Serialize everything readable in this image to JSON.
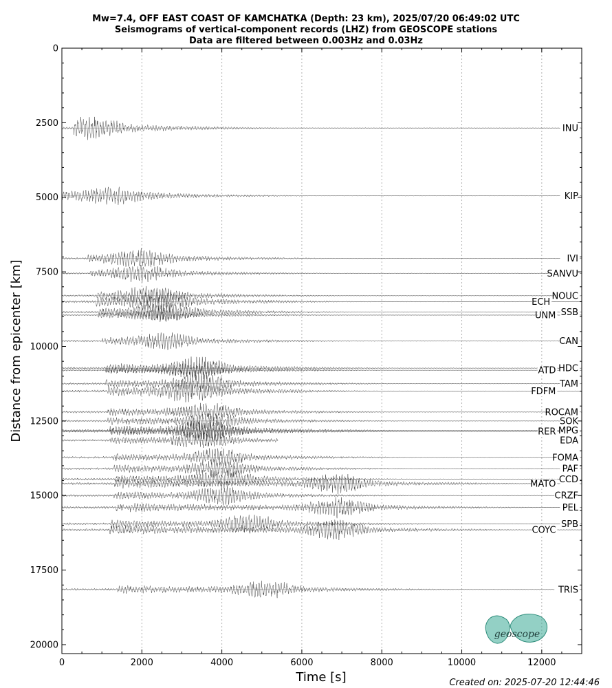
{
  "chart_data": {
    "type": "seismogram-record-section",
    "title_lines": [
      "Mw=7.4, OFF EAST COAST OF KAMCHATKA (Depth: 23 km), 2025/07/20 06:49:02 UTC",
      "Seismograms of vertical-component records (LHZ) from GEOSCOPE stations",
      "Data are filtered between 0.003Hz and 0.03Hz"
    ],
    "xlabel": "Time [s]",
    "ylabel": "Distance from epicenter [km]",
    "xlim": [
      0,
      13000
    ],
    "ylim": [
      20300,
      0
    ],
    "y_inverted": true,
    "x_ticks": [
      0,
      2000,
      4000,
      6000,
      8000,
      10000,
      12000
    ],
    "y_ticks": [
      0,
      2500,
      5000,
      7500,
      10000,
      12500,
      15000,
      17500,
      20000
    ],
    "grid": "vertical dotted lines at major x ticks",
    "stations": [
      {
        "name": "INU",
        "distance": 2680,
        "onset": 300,
        "peak": 800,
        "amp": 0.95
      },
      {
        "name": "KIP",
        "distance": 4950,
        "onset": 0,
        "peak": 1300,
        "amp": 0.85
      },
      {
        "name": "IVI",
        "distance": 7050,
        "onset": 650,
        "peak": 1950,
        "amp": 0.85
      },
      {
        "name": "SANVU",
        "distance": 7550,
        "onset": 700,
        "peak": 2000,
        "amp": 0.75
      },
      {
        "name": "NOUC",
        "distance": 8300,
        "onset": 850,
        "peak": 2200,
        "amp": 0.8
      },
      {
        "name": "ECH",
        "distance": 8500,
        "onset": 850,
        "peak": 2500,
        "amp": 0.95
      },
      {
        "name": "SSB",
        "distance": 8850,
        "onset": 900,
        "peak": 2550,
        "amp": 0.85
      },
      {
        "name": "UNM",
        "distance": 8950,
        "onset": 900,
        "peak": 2500,
        "amp": 0.6
      },
      {
        "name": "CAN",
        "distance": 9820,
        "onset": 1000,
        "peak": 2600,
        "amp": 0.75
      },
      {
        "name": "HDC",
        "distance": 10730,
        "onset": 1100,
        "peak": 3400,
        "amp": 1.0
      },
      {
        "name": "ATD",
        "distance": 10800,
        "onset": 1100,
        "peak": 3300,
        "amp": 0.7
      },
      {
        "name": "TAM",
        "distance": 11250,
        "onset": 1100,
        "peak": 3500,
        "amp": 0.9
      },
      {
        "name": "FDFM",
        "distance": 11500,
        "onset": 1150,
        "peak": 3200,
        "amp": 1.0
      },
      {
        "name": "ROCAM",
        "distance": 12200,
        "onset": 1150,
        "peak": 3600,
        "amp": 0.85
      },
      {
        "name": "SOK",
        "distance": 12500,
        "onset": 1150,
        "peak": 3700,
        "amp": 0.8
      },
      {
        "name": "MPG",
        "distance": 12820,
        "onset": 1200,
        "peak": 3600,
        "amp": 1.0
      },
      {
        "name": "RER",
        "distance": 12850,
        "onset": 1200,
        "peak": 3650,
        "amp": 0.8
      },
      {
        "name": "EDA",
        "distance": 13150,
        "onset": 1200,
        "peak": 3500,
        "amp": 0.8
      },
      {
        "name": "FOMA",
        "distance": 13720,
        "onset": 1250,
        "peak": 3900,
        "amp": 0.85
      },
      {
        "name": "PAF",
        "distance": 14100,
        "onset": 1300,
        "peak": 3950,
        "amp": 0.85
      },
      {
        "name": "CCD",
        "distance": 14450,
        "onset": 1300,
        "peak": 4000,
        "amp": 0.9
      },
      {
        "name": "MATO",
        "distance": 14600,
        "onset": 1300,
        "peak": 6900,
        "amp": 1.0
      },
      {
        "name": "CRZF",
        "distance": 15000,
        "onset": 1300,
        "peak": 4000,
        "amp": 0.85
      },
      {
        "name": "PEL",
        "distance": 15400,
        "onset": 1350,
        "peak": 6900,
        "amp": 1.0
      },
      {
        "name": "SPB",
        "distance": 15950,
        "onset": 1200,
        "peak": 4700,
        "amp": 0.9
      },
      {
        "name": "COYC",
        "distance": 16150,
        "onset": 1200,
        "peak": 6800,
        "amp": 1.0
      },
      {
        "name": "TRIS",
        "distance": 18150,
        "onset": 1400,
        "peak": 5100,
        "amp": 0.9
      }
    ]
  },
  "footer": {
    "created_on": "Created on: 2025-07-20 12:44:46"
  },
  "logo": {
    "text": "geoscope",
    "color": "#3aaa96"
  }
}
